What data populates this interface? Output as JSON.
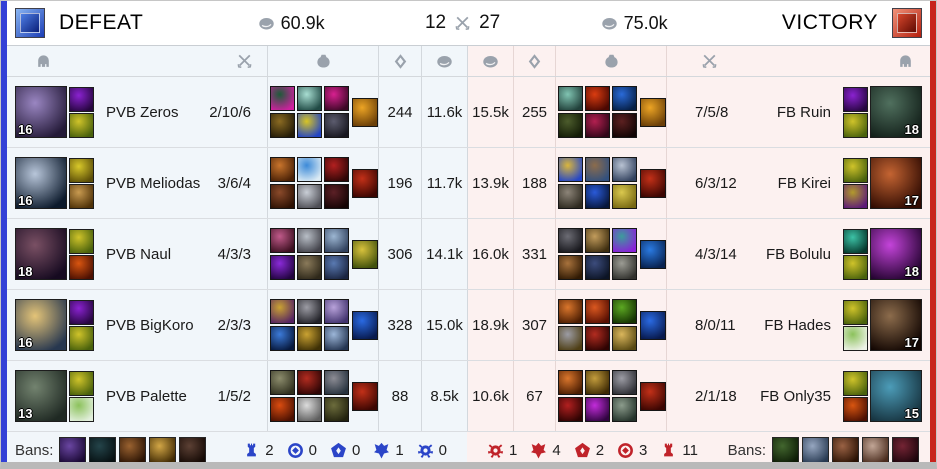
{
  "header": {
    "left": {
      "result": "DEFEAT",
      "gold": "60.9k",
      "kills": "12"
    },
    "right": {
      "result": "VICTORY",
      "gold": "75.0k",
      "kills": "27"
    }
  },
  "bans_label": "Bans:",
  "objective_colors": {
    "left": "#2b45c8",
    "right": "#c0232a"
  },
  "teams": {
    "left": {
      "players": [
        {
          "name": "PVB Zeros",
          "kda": "2/10/6",
          "cs": "244",
          "gold": "11.6k",
          "level": "16",
          "portrait": [
            "#9a86c2",
            "#241a38"
          ],
          "spells": [
            [
              "#8a22d0",
              "#26063f"
            ],
            [
              "#cfc32a",
              "#49610c"
            ]
          ],
          "items": [
            [
              "#1d5a38",
              "#d020a0"
            ],
            [
              "#a8ded2",
              "#204a45"
            ],
            [
              "#d82090",
              "#3c0826"
            ],
            [
              "#8a6a22",
              "#241c08"
            ],
            [
              "#d8c524",
              "#2244c4"
            ],
            [
              "#5c5c6e",
              "#17171f"
            ]
          ],
          "trinket": [
            "#eca424",
            "#6b3f08"
          ]
        },
        {
          "name": "PVB Meliodas",
          "kda": "3/6/4",
          "cs": "196",
          "gold": "11.7k",
          "level": "16",
          "portrait": [
            "#b8c6da",
            "#0c1a2c"
          ],
          "spells": [
            [
              "#d8c82a",
              "#5c4e08"
            ],
            [
              "#c89a50",
              "#4f3208"
            ]
          ],
          "items": [
            [
              "#c8742c",
              "#4a2106"
            ],
            [
              "#3c8ad8",
              "#dcebf4"
            ],
            [
              "#b22020",
              "#2e0606"
            ],
            [
              "#8a4a2a",
              "#2e1204"
            ],
            [
              "#c9ced6",
              "#4e4e55"
            ],
            [
              "#5c2026",
              "#140404"
            ]
          ],
          "trinket": [
            "#c23018",
            "#3c0602"
          ]
        },
        {
          "name": "PVB Naul",
          "kda": "4/3/3",
          "cs": "306",
          "gold": "14.1k",
          "level": "18",
          "portrait": [
            "#7a5064",
            "#160a20"
          ],
          "spells": [
            [
              "#cfc32a",
              "#49610c"
            ],
            [
              "#d85510",
              "#4c1002"
            ]
          ],
          "items": [
            [
              "#c05a8a",
              "#3c1020"
            ],
            [
              "#b8bec6",
              "#43434b"
            ],
            [
              "#9cb6d2",
              "#32425e"
            ],
            [
              "#8a2ad8",
              "#220440"
            ],
            [
              "#8a7a5a",
              "#2e281a"
            ],
            [
              "#5a7ab2",
              "#1a2440"
            ]
          ],
          "trinket": [
            "#d8c23c",
            "#41510c"
          ]
        },
        {
          "name": "PVB BigKoro",
          "kda": "2/3/3",
          "cs": "328",
          "gold": "15.0k",
          "level": "16",
          "portrait": [
            "#e4c478",
            "#27374f"
          ],
          "spells": [
            [
              "#8a22d0",
              "#26063f"
            ],
            [
              "#cfc32a",
              "#49610c"
            ]
          ],
          "items": [
            [
              "#caa232",
              "#552462"
            ],
            [
              "#9c9ca4",
              "#232329"
            ],
            [
              "#b8a2da",
              "#41336e"
            ],
            [
              "#3c7ad8",
              "#07193e"
            ],
            [
              "#caa232",
              "#3e3006"
            ],
            [
              "#9cb6d8",
              "#243450"
            ]
          ],
          "trinket": [
            "#2a6ae2",
            "#081a4e"
          ]
        },
        {
          "name": "PVB Palette",
          "kda": "1/5/2",
          "cs": "88",
          "gold": "8.5k",
          "level": "13",
          "portrait": [
            "#73836f",
            "#1f2923"
          ],
          "spells": [
            [
              "#cfc32a",
              "#49610c"
            ],
            [
              "#8cc25c",
              "#e2efdc"
            ]
          ],
          "items": [
            [
              "#8c8c6c",
              "#30301f"
            ],
            [
              "#b22c20",
              "#2e0505"
            ],
            [
              "#8c8c94",
              "#26323e"
            ],
            [
              "#da4c10",
              "#4b1102"
            ],
            [
              "#dcdcdc",
              "#5e5e5e"
            ],
            [
              "#6c6c3c",
              "#22220e"
            ]
          ],
          "trinket": [
            "#c23018",
            "#3c0602"
          ]
        }
      ],
      "bans": [
        [
          "#6a46a2",
          "#190833"
        ],
        [
          "#24444a",
          "#060f11"
        ],
        [
          "#9a6230",
          "#2a1304"
        ],
        [
          "#d2a646",
          "#402a04"
        ],
        [
          "#5c4034",
          "#150a05"
        ]
      ],
      "objectives": [
        {
          "type": "tower",
          "count": "2"
        },
        {
          "type": "inhibitor",
          "count": "0"
        },
        {
          "type": "herald",
          "count": "0"
        },
        {
          "type": "dragon",
          "count": "1"
        },
        {
          "type": "baron",
          "count": "0"
        }
      ]
    },
    "right": {
      "players": [
        {
          "name": "FB Ruin",
          "kda": "7/5/8",
          "cs": "255",
          "gold": "15.5k",
          "level": "18",
          "portrait": [
            "#50705e",
            "#13201a"
          ],
          "spells": [
            [
              "#8a22d0",
              "#26063f"
            ],
            [
              "#cfc32a",
              "#49610c"
            ]
          ],
          "items": [
            [
              "#80c4b2",
              "#21403a"
            ],
            [
              "#da3c10",
              "#4b0802"
            ],
            [
              "#2a6ad8",
              "#061f46"
            ],
            [
              "#4c5c2c",
              "#131b06"
            ],
            [
              "#b22050",
              "#300618"
            ],
            [
              "#5c2020",
              "#110404"
            ]
          ],
          "trinket": [
            "#eca424",
            "#6b3f08"
          ]
        },
        {
          "name": "FB Kirei",
          "kda": "6/3/12",
          "cs": "188",
          "gold": "13.9k",
          "level": "17",
          "portrait": [
            "#c46432",
            "#300b02"
          ],
          "spells": [
            [
              "#cfc32a",
              "#49610c"
            ],
            [
              "#b29a2c",
              "#5c1a78"
            ]
          ],
          "items": [
            [
              "#dab63c",
              "#2446c8"
            ],
            [
              "#8c6c4c",
              "#32507e"
            ],
            [
              "#b8c2d2",
              "#32415e"
            ],
            [
              "#8c8478",
              "#2e2a20"
            ],
            [
              "#2a5ad8",
              "#07173c"
            ],
            [
              "#dac84e",
              "#776812"
            ]
          ],
          "trinket": [
            "#c23018",
            "#3c0602"
          ]
        },
        {
          "name": "FB Bolulu",
          "kda": "4/3/14",
          "cs": "331",
          "gold": "16.0k",
          "level": "18",
          "portrait": [
            "#c444da",
            "#240330"
          ],
          "spells": [
            [
              "#3cc2a6",
              "#06382c"
            ],
            [
              "#cfc32a",
              "#49610c"
            ]
          ],
          "items": [
            [
              "#6c6c74",
              "#18181d"
            ],
            [
              "#c29c5c",
              "#3e2e10"
            ],
            [
              "#3c9c9c",
              "#8a20d8"
            ],
            [
              "#a8723c",
              "#301a04"
            ],
            [
              "#3c4c7c",
              "#0c1425"
            ],
            [
              "#9c9c94",
              "#30302c"
            ]
          ],
          "trinket": [
            "#2a7ae2",
            "#082250"
          ]
        },
        {
          "name": "FB Hades",
          "kda": "8/0/11",
          "cs": "307",
          "gold": "18.9k",
          "level": "17",
          "portrait": [
            "#8c6c4c",
            "#120602"
          ],
          "spells": [
            [
              "#cfc32a",
              "#49610c"
            ],
            [
              "#8cc25c",
              "#eef2e8"
            ]
          ],
          "items": [
            [
              "#da762c",
              "#4b1d02"
            ],
            [
              "#da5820",
              "#580f02"
            ],
            [
              "#5ca822",
              "#153202"
            ],
            [
              "#9c9ca4",
              "#4e3e14"
            ],
            [
              "#b22c20",
              "#2e0302"
            ],
            [
              "#dab65c",
              "#574812"
            ]
          ],
          "trinket": [
            "#2a6ae2",
            "#081a4e"
          ]
        },
        {
          "name": "FB Only35",
          "kda": "2/1/18",
          "cs": "67",
          "gold": "10.6k",
          "level": "15",
          "portrait": [
            "#4c9cb8",
            "#16323e"
          ],
          "spells": [
            [
              "#cfc32a",
              "#49610c"
            ],
            [
              "#d85510",
              "#4c1002"
            ]
          ],
          "items": [
            [
              "#da762c",
              "#4b1d02"
            ],
            [
              "#c29c3c",
              "#3e2a04"
            ],
            [
              "#9c9ca4",
              "#2e2e34"
            ],
            [
              "#b22020",
              "#2e0302"
            ],
            [
              "#c22cda",
              "#300440"
            ],
            [
              "#8c9c8c",
              "#24322a"
            ]
          ],
          "trinket": [
            "#c23018",
            "#3c0602"
          ]
        }
      ],
      "bans": [
        [
          "#42662e",
          "#0d1c06"
        ],
        [
          "#96a6c0",
          "#283a52"
        ],
        [
          "#9a6244",
          "#2a1204"
        ],
        [
          "#c2a696",
          "#4a2c1e"
        ],
        [
          "#742434",
          "#1d050c"
        ]
      ],
      "objectives": [
        {
          "type": "baron",
          "count": "1"
        },
        {
          "type": "dragon",
          "count": "4"
        },
        {
          "type": "herald",
          "count": "2"
        },
        {
          "type": "inhibitor",
          "count": "3"
        },
        {
          "type": "tower",
          "count": "11"
        }
      ]
    }
  }
}
